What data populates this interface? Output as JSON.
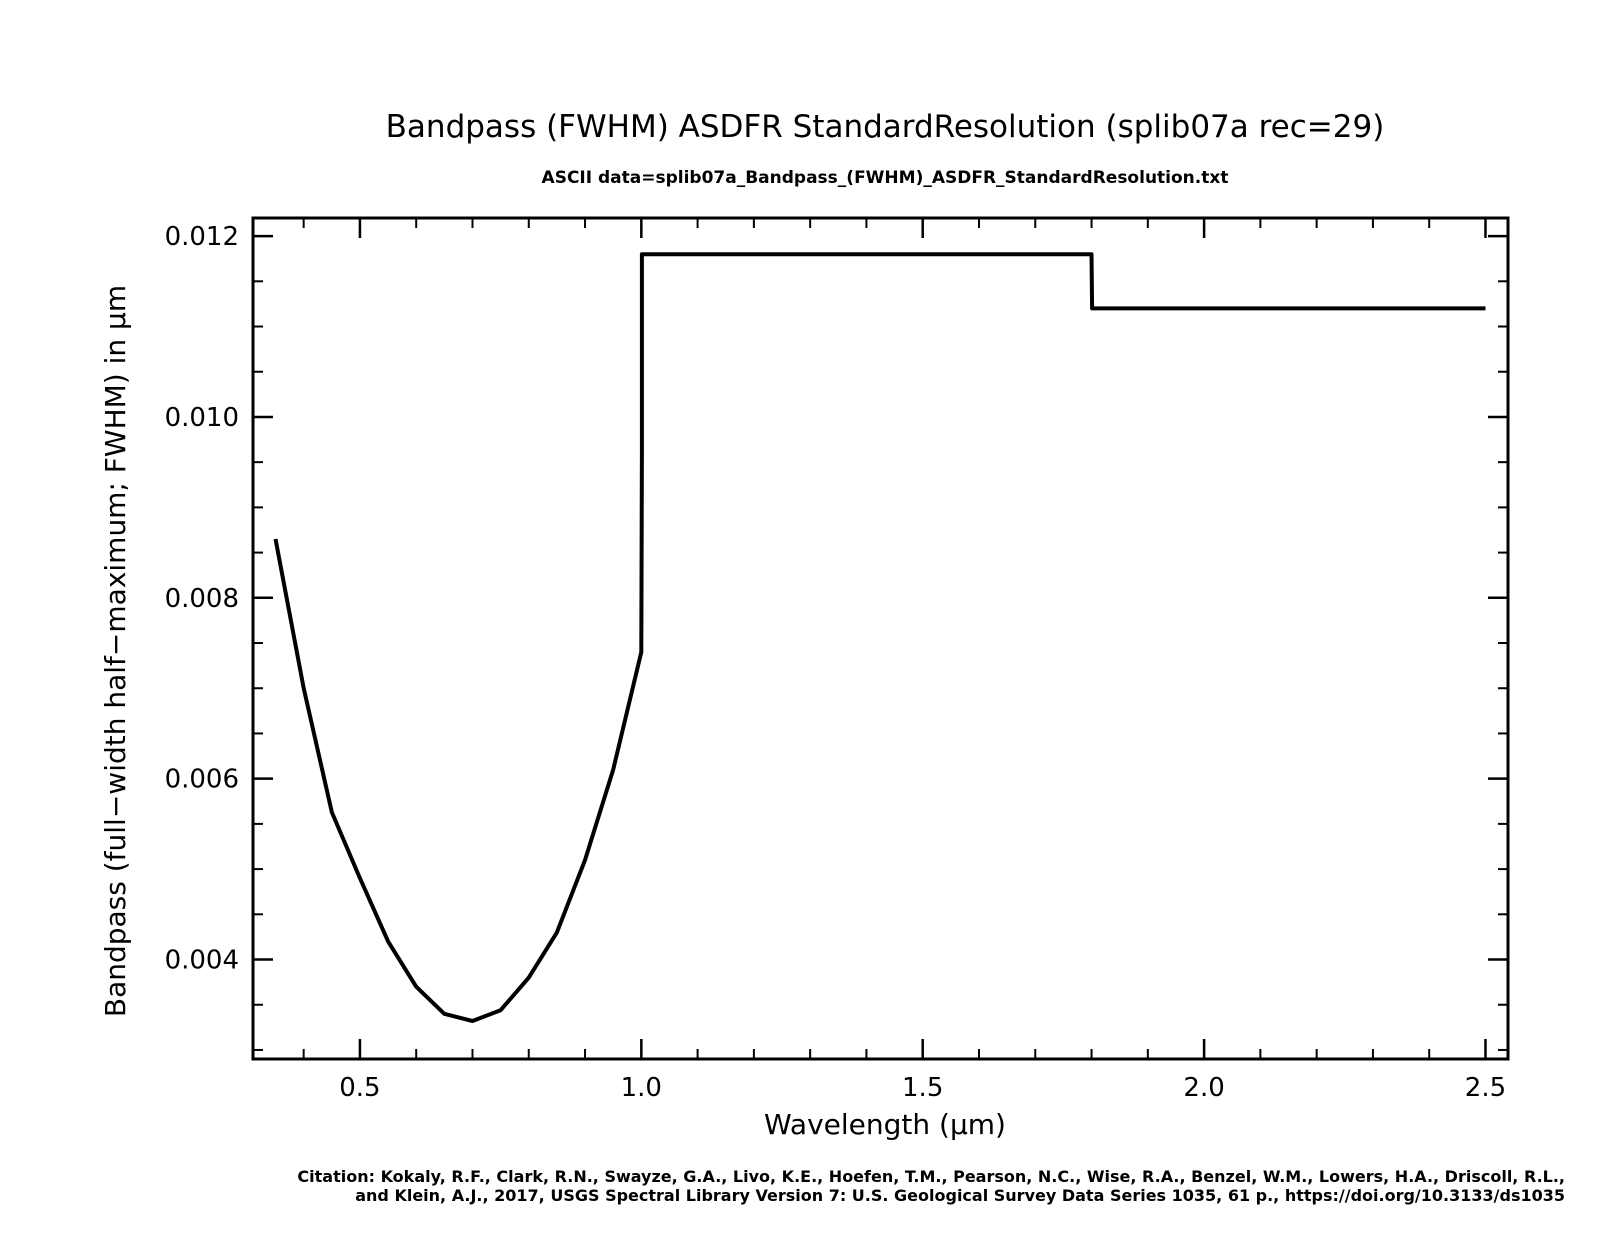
{
  "chart_data": {
    "type": "line",
    "title": "Bandpass (FWHM) ASDFR StandardResolution  (splib07a rec=29)",
    "subtitle": "ASCII data=splib07a_Bandpass_(FWHM)_ASDFR_StandardResolution.txt",
    "xlabel": "Wavelength (μm)",
    "ylabel": "Bandpass (full−width half−maximum; FWHM) in μm",
    "xlim": [
      0.31,
      2.54
    ],
    "ylim": [
      0.0029,
      0.0122
    ],
    "x_ticks": [
      0.5,
      1.0,
      1.5,
      2.0,
      2.5
    ],
    "x_tick_labels": [
      "0.5",
      "1.0",
      "1.5",
      "2.0",
      "2.5"
    ],
    "x_minor_step": 0.1,
    "y_ticks": [
      0.004,
      0.006,
      0.008,
      0.01,
      0.012
    ],
    "y_tick_labels": [
      "0.004",
      "0.006",
      "0.008",
      "0.010",
      "0.012"
    ],
    "y_minor_step": 0.0005,
    "grid": false,
    "line_color": "#000000",
    "series": [
      {
        "x": [
          0.35,
          0.4,
          0.45,
          0.5,
          0.55,
          0.6,
          0.65,
          0.7,
          0.75,
          0.8,
          0.85,
          0.9,
          0.95,
          1.0,
          1.001,
          1.001,
          1.8,
          1.801,
          2.5
        ],
        "y": [
          0.00865,
          0.007,
          0.00563,
          0.0049,
          0.0042,
          0.0037,
          0.0034,
          0.00332,
          0.00344,
          0.0038,
          0.0043,
          0.0051,
          0.0061,
          0.0074,
          0.0096,
          0.0118,
          0.0118,
          0.0112,
          0.0112
        ]
      }
    ]
  },
  "citation": {
    "line1": "Citation: Kokaly, R.F., Clark, R.N., Swayze, G.A., Livo, K.E., Hoefen, T.M., Pearson, N.C., Wise, R.A., Benzel, W.M., Lowers, H.A., Driscoll, R.L.,",
    "line2": "and Klein, A.J., 2017, USGS Spectral Library Version 7: U.S. Geological Survey Data Series 1035, 61 p., https://doi.org/10.3133/ds1035"
  }
}
